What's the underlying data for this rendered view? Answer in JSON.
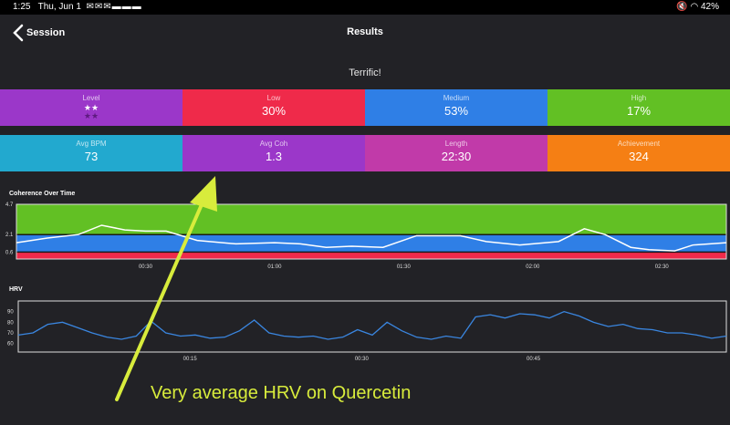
{
  "status_bar": {
    "time": "1:25",
    "date": "Thu, Jun 1",
    "notification_icons": [
      "mail-icon",
      "mail-icon",
      "mail-icon",
      "bookmark-icon",
      "bookmark-icon",
      "bookmark-icon"
    ],
    "battery": "42%"
  },
  "header": {
    "back_label": "Session",
    "title": "Results"
  },
  "rating": "Terrific!",
  "row1": [
    {
      "label": "Level",
      "value": "",
      "stars": [
        "★★",
        "★★"
      ],
      "color": "#9b37c9"
    },
    {
      "label": "Low",
      "value": "30%",
      "color": "#ef2a4a"
    },
    {
      "label": "Medium",
      "value": "53%",
      "color": "#2f7fe6"
    },
    {
      "label": "High",
      "value": "17%",
      "color": "#62c024"
    }
  ],
  "row2": [
    {
      "label": "Avg BPM",
      "value": "73",
      "color": "#22a9cf"
    },
    {
      "label": "Avg Coh",
      "value": "1.3",
      "color": "#9b37c9"
    },
    {
      "label": "Length",
      "value": "22:30",
      "color": "#c13aa9"
    },
    {
      "label": "Achievement",
      "value": "324",
      "color": "#f57f14"
    }
  ],
  "chart_data": [
    {
      "type": "area",
      "title": "Coherence Over Time",
      "y_ticks": [
        "4.7",
        "2.1",
        "0.6"
      ],
      "x_ticks": [
        "00:30",
        "01:00",
        "01:30",
        "02:00",
        "02:30"
      ],
      "bands": [
        {
          "name": "High",
          "from": 2.1,
          "to": 4.7,
          "color": "#62c024"
        },
        {
          "name": "Medium",
          "from": 0.6,
          "to": 2.1,
          "color": "#2f7fe6"
        },
        {
          "name": "Low",
          "from": 0,
          "to": 0.6,
          "color": "#ef2a4a"
        }
      ],
      "ylim": [
        0,
        4.7
      ],
      "xlim": [
        0,
        2.75
      ],
      "series": [
        {
          "x": [
            0,
            0.12,
            0.24,
            0.33,
            0.42,
            0.5,
            0.58,
            0.7,
            0.85,
            1.0,
            1.1,
            1.2,
            1.3,
            1.42,
            1.55,
            1.65,
            1.72,
            1.82,
            1.95,
            2.1,
            2.2,
            2.28,
            2.38,
            2.45,
            2.55,
            2.62,
            2.75
          ],
          "values": [
            1.4,
            1.8,
            2.1,
            2.9,
            2.5,
            2.4,
            2.4,
            1.6,
            1.3,
            1.4,
            1.3,
            1.0,
            1.1,
            1.0,
            2.0,
            2.0,
            2.0,
            1.5,
            1.2,
            1.5,
            2.6,
            2.1,
            1.0,
            0.8,
            0.7,
            1.2,
            1.4
          ],
          "color": "#ffffff"
        }
      ]
    },
    {
      "type": "line",
      "title": "HRV",
      "y_ticks": [
        90,
        80,
        70,
        60
      ],
      "x_ticks": [
        "00:15",
        "00:30",
        "00:45"
      ],
      "ylim": [
        52,
        100
      ],
      "xlim": [
        0,
        0.96
      ],
      "series": [
        {
          "x": [
            0,
            0.02,
            0.04,
            0.06,
            0.08,
            0.1,
            0.12,
            0.14,
            0.16,
            0.18,
            0.2,
            0.22,
            0.24,
            0.26,
            0.28,
            0.3,
            0.32,
            0.34,
            0.36,
            0.38,
            0.4,
            0.42,
            0.44,
            0.46,
            0.48,
            0.5,
            0.52,
            0.54,
            0.56,
            0.58,
            0.6,
            0.62,
            0.64,
            0.66,
            0.68,
            0.7,
            0.72,
            0.74,
            0.76,
            0.78,
            0.8,
            0.82,
            0.84,
            0.86,
            0.88,
            0.9,
            0.92,
            0.94,
            0.96
          ],
          "values": [
            68,
            70,
            78,
            80,
            75,
            70,
            66,
            64,
            67,
            81,
            70,
            67,
            68,
            65,
            66,
            72,
            82,
            70,
            67,
            66,
            67,
            64,
            66,
            73,
            68,
            80,
            72,
            66,
            64,
            67,
            65,
            85,
            87,
            84,
            88,
            87,
            84,
            90,
            86,
            80,
            76,
            78,
            74,
            73,
            70,
            70,
            68,
            65,
            67
          ],
          "color": "#3a86e0"
        }
      ]
    }
  ],
  "annotation": {
    "text": "Very average HRV on Quercetin",
    "color": "#d8ec3c"
  }
}
